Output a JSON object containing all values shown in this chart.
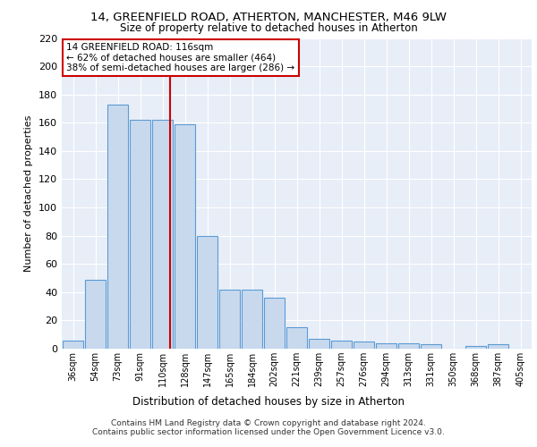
{
  "title1": "14, GREENFIELD ROAD, ATHERTON, MANCHESTER, M46 9LW",
  "title2": "Size of property relative to detached houses in Atherton",
  "xlabel": "Distribution of detached houses by size in Atherton",
  "ylabel": "Number of detached properties",
  "footer1": "Contains HM Land Registry data © Crown copyright and database right 2024.",
  "footer2": "Contains public sector information licensed under the Open Government Licence v3.0.",
  "annotation_line1": "14 GREENFIELD ROAD: 116sqm",
  "annotation_line2": "← 62% of detached houses are smaller (464)",
  "annotation_line3": "38% of semi-detached houses are larger (286) →",
  "property_size": 116,
  "bar_categories": [
    "36sqm",
    "54sqm",
    "73sqm",
    "91sqm",
    "110sqm",
    "128sqm",
    "147sqm",
    "165sqm",
    "184sqm",
    "202sqm",
    "221sqm",
    "239sqm",
    "257sqm",
    "276sqm",
    "294sqm",
    "313sqm",
    "331sqm",
    "350sqm",
    "368sqm",
    "387sqm",
    "405sqm"
  ],
  "bar_values": [
    6,
    49,
    173,
    162,
    162,
    159,
    80,
    42,
    42,
    36,
    15,
    7,
    6,
    5,
    4,
    4,
    3,
    0,
    2,
    3,
    0
  ],
  "bar_color": "#c9d9ed",
  "bar_edge_color": "#5b9bd5",
  "vline_color": "#cc0000",
  "ylim": [
    0,
    220
  ],
  "yticks": [
    0,
    20,
    40,
    60,
    80,
    100,
    120,
    140,
    160,
    180,
    200,
    220
  ],
  "plot_bg_color": "#e8eef7",
  "grid_color": "#ffffff"
}
